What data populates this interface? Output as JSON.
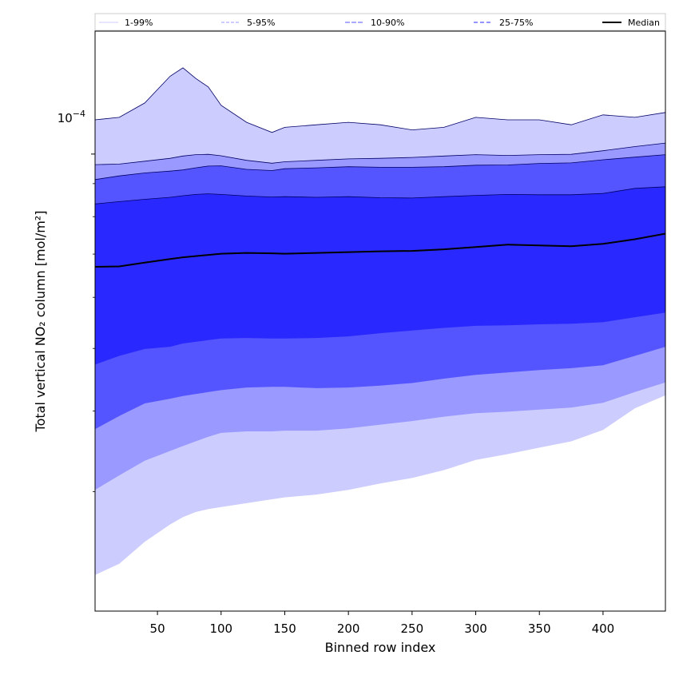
{
  "chart_data": {
    "type": "area",
    "xlabel": "Binned row index",
    "ylabel": "Total vertical NO₂ column [mol/m²]",
    "yscale": "log",
    "xlim": [
      1,
      449
    ],
    "ylim": [
      1.96e-05,
      0.000155
    ],
    "grid": false,
    "legend_placement": "top, spanning full width",
    "x_ticks": [
      50,
      100,
      150,
      200,
      250,
      300,
      350,
      400
    ],
    "x_tick_labels": [
      "50",
      "100",
      "150",
      "200",
      "250",
      "300",
      "350",
      "400"
    ],
    "y_ticks": [
      0.0001
    ],
    "y_tick_labels": [
      "10^{-4}"
    ],
    "y_tick_label_base": "10",
    "y_tick_label_exponent": "−4",
    "y_minor_ticks": [
      3e-05,
      4e-05,
      5e-05,
      6e-05,
      7e-05,
      8e-05,
      9e-05
    ],
    "x": [
      1,
      20,
      40,
      60,
      70,
      80,
      90,
      100,
      120,
      140,
      150,
      175,
      200,
      225,
      250,
      275,
      300,
      325,
      350,
      375,
      400,
      425,
      449
    ],
    "bands": [
      {
        "name": "1-99%",
        "color": "#ccccff",
        "line_color": "#ccccff",
        "dash": "solid",
        "lower": [
          2.23e-05,
          2.32e-05,
          2.51e-05,
          2.67e-05,
          2.74e-05,
          2.79e-05,
          2.82e-05,
          2.84e-05,
          2.88e-05,
          2.92e-05,
          2.94e-05,
          2.97e-05,
          3.02e-05,
          3.09e-05,
          3.15e-05,
          3.24e-05,
          3.36e-05,
          3.43e-05,
          3.51e-05,
          3.59e-05,
          3.74e-05,
          4.04e-05,
          4.23e-05
        ],
        "upper": [
          0.000113,
          0.000114,
          0.00012,
          0.000132,
          0.000136,
          0.000131,
          0.000127,
          0.000119,
          0.000112,
          0.000108,
          0.00011,
          0.000111,
          0.000112,
          0.000111,
          0.000109,
          0.00011,
          0.000114,
          0.000113,
          0.000113,
          0.000111,
          0.000115,
          0.000114,
          0.000116
        ]
      },
      {
        "name": "5-95%",
        "color": "#9999ff",
        "line_color": "#9999ff",
        "dash": "4,2",
        "lower": [
          3.02e-05,
          3.18e-05,
          3.35e-05,
          3.47e-05,
          3.53e-05,
          3.59e-05,
          3.65e-05,
          3.7e-05,
          3.72e-05,
          3.72e-05,
          3.73e-05,
          3.73e-05,
          3.76e-05,
          3.81e-05,
          3.86e-05,
          3.92e-05,
          3.97e-05,
          3.99e-05,
          4.02e-05,
          4.05e-05,
          4.12e-05,
          4.28e-05,
          4.43e-05
        ],
        "upper": [
          9.63e-05,
          9.65e-05,
          9.75e-05,
          9.85e-05,
          9.93e-05,
          9.98e-05,
          9.99e-05,
          9.94e-05,
          9.78e-05,
          9.68e-05,
          9.73e-05,
          9.78e-05,
          9.83e-05,
          9.85e-05,
          9.88e-05,
          9.93e-05,
          9.98e-05,
          9.95e-05,
          9.98e-05,
          9.99e-05,
          0.0001012,
          0.0001027,
          0.000104
        ]
      },
      {
        "name": "10-90%",
        "color": "#5555ff",
        "line_color": "#5555ff",
        "dash": "6,2",
        "lower": [
          3.75e-05,
          3.93e-05,
          4.11e-05,
          4.18e-05,
          4.22e-05,
          4.25e-05,
          4.28e-05,
          4.31e-05,
          4.35e-05,
          4.36e-05,
          4.36e-05,
          4.34e-05,
          4.35e-05,
          4.38e-05,
          4.42e-05,
          4.49e-05,
          4.55e-05,
          4.59e-05,
          4.63e-05,
          4.66e-05,
          4.71e-05,
          4.87e-05,
          5.03e-05
        ],
        "upper": [
          9.13e-05,
          9.25e-05,
          9.35e-05,
          9.41e-05,
          9.45e-05,
          9.52e-05,
          9.58e-05,
          9.59e-05,
          9.47e-05,
          9.43e-05,
          9.49e-05,
          9.52e-05,
          9.56e-05,
          9.54e-05,
          9.54e-05,
          9.56e-05,
          9.61e-05,
          9.62e-05,
          9.67e-05,
          9.69e-05,
          9.8e-05,
          9.89e-05,
          9.98e-05
        ]
      },
      {
        "name": "25-75%",
        "color": "#2929ff",
        "line_color": "#2929ff",
        "dash": "5,3",
        "lower": [
          4.72e-05,
          4.87e-05,
          4.99e-05,
          5.03e-05,
          5.09e-05,
          5.12e-05,
          5.15e-05,
          5.18e-05,
          5.19e-05,
          5.18e-05,
          5.18e-05,
          5.19e-05,
          5.22e-05,
          5.28e-05,
          5.33e-05,
          5.38e-05,
          5.42e-05,
          5.43e-05,
          5.45e-05,
          5.46e-05,
          5.49e-05,
          5.59e-05,
          5.68e-05
        ],
        "upper": [
          8.37e-05,
          8.44e-05,
          8.51e-05,
          8.57e-05,
          8.62e-05,
          8.66e-05,
          8.68e-05,
          8.66e-05,
          8.61e-05,
          8.58e-05,
          8.59e-05,
          8.57e-05,
          8.59e-05,
          8.56e-05,
          8.55e-05,
          8.59e-05,
          8.63e-05,
          8.66e-05,
          8.65e-05,
          8.65e-05,
          8.69e-05,
          8.85e-05,
          8.9e-05
        ]
      }
    ],
    "series": [
      {
        "name": "Median",
        "color": "#000000",
        "values": [
          6.69e-05,
          6.7e-05,
          6.79e-05,
          6.88e-05,
          6.92e-05,
          6.95e-05,
          6.98e-05,
          7.01e-05,
          7.03e-05,
          7.02e-05,
          7.01e-05,
          7.03e-05,
          7.05e-05,
          7.07e-05,
          7.08e-05,
          7.12e-05,
          7.18e-05,
          7.24e-05,
          7.22e-05,
          7.2e-05,
          7.26e-05,
          7.38e-05,
          7.53e-05
        ]
      }
    ]
  }
}
